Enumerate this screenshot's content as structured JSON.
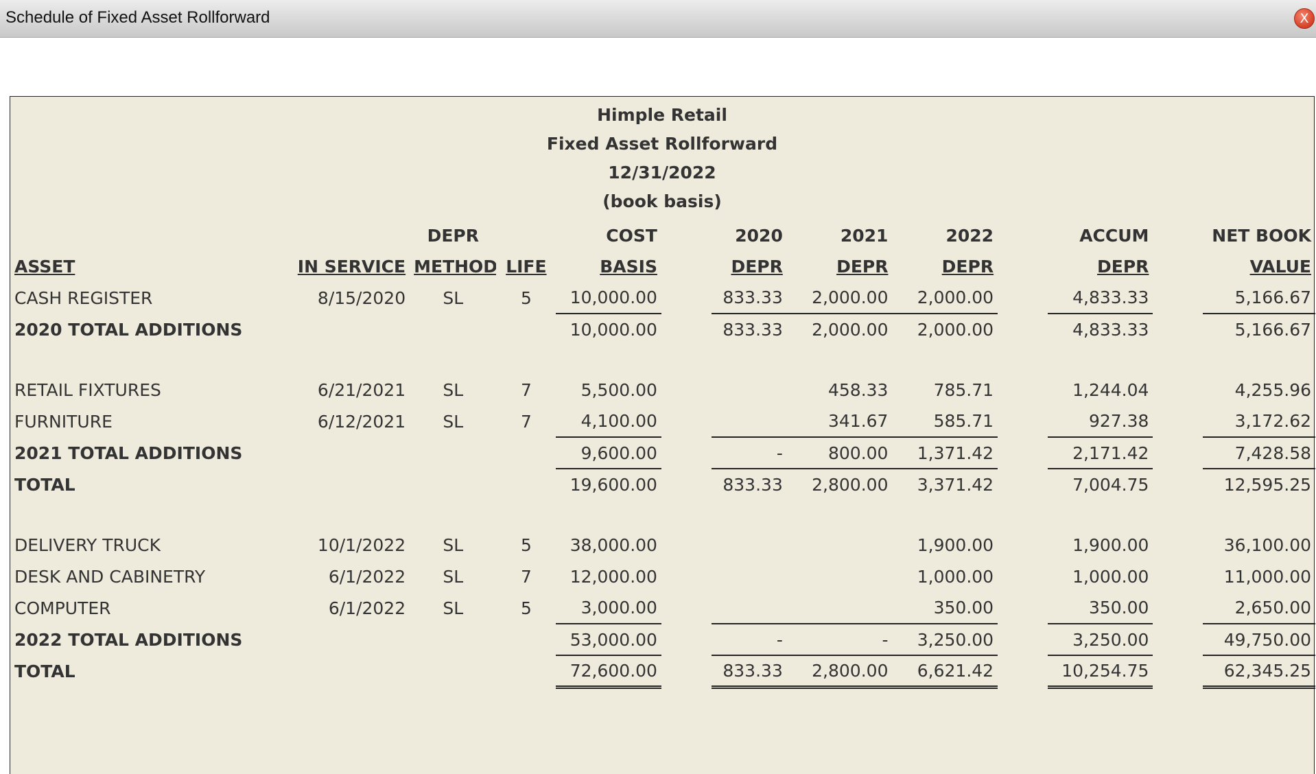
{
  "window": {
    "title": "Schedule of Fixed Asset Rollforward",
    "close_glyph": "X"
  },
  "report": {
    "company": "Himple Retail",
    "title": "Fixed Asset Rollforward",
    "date": "12/31/2022",
    "basis": "(book basis)"
  },
  "columns": {
    "top": {
      "method": "DEPR",
      "cost": "COST",
      "d2020": "2020",
      "d2021": "2021",
      "d2022": "2022",
      "accum": "ACCUM",
      "nbv": "NET BOOK"
    },
    "bottom": {
      "asset": "ASSET",
      "in_service": "IN SERVICE",
      "method": "METHOD",
      "life": "LIFE",
      "cost": "BASIS",
      "d2020": "DEPR",
      "d2021": "DEPR",
      "d2022": "DEPR",
      "accum": "DEPR",
      "nbv": "VALUE"
    }
  },
  "rows": [
    {
      "type": "asset",
      "asset": "CASH REGISTER",
      "in_service": "8/15/2020",
      "method": "SL",
      "life": "5",
      "cost": "10,000.00",
      "d2020": "833.33",
      "d2021": "2,000.00",
      "d2022": "2,000.00",
      "accum": "4,833.33",
      "nbv": "5,166.67"
    },
    {
      "type": "subtotal",
      "asset": "2020 TOTAL ADDITIONS",
      "cost": "10,000.00",
      "d2020": "833.33",
      "d2021": "2,000.00",
      "d2022": "2,000.00",
      "accum": "4,833.33",
      "nbv": "5,166.67"
    },
    {
      "type": "spacer"
    },
    {
      "type": "asset",
      "asset": "RETAIL FIXTURES",
      "in_service": "6/21/2021",
      "method": "SL",
      "life": "7",
      "cost": "5,500.00",
      "d2020": "",
      "d2021": "458.33",
      "d2022": "785.71",
      "accum": "1,244.04",
      "nbv": "4,255.96"
    },
    {
      "type": "asset",
      "asset": "FURNITURE",
      "in_service": "6/12/2021",
      "method": "SL",
      "life": "7",
      "cost": "4,100.00",
      "d2020": "",
      "d2021": "341.67",
      "d2022": "585.71",
      "accum": "927.38",
      "nbv": "3,172.62"
    },
    {
      "type": "subtotal",
      "asset": "2021 TOTAL ADDITIONS",
      "cost": "9,600.00",
      "d2020": "-",
      "d2021": "800.00",
      "d2022": "1,371.42",
      "accum": "2,171.42",
      "nbv": "7,428.58"
    },
    {
      "type": "total",
      "asset": "TOTAL",
      "cost": "19,600.00",
      "d2020": "833.33",
      "d2021": "2,800.00",
      "d2022": "3,371.42",
      "accum": "7,004.75",
      "nbv": "12,595.25"
    },
    {
      "type": "spacer"
    },
    {
      "type": "asset",
      "asset": "DELIVERY TRUCK",
      "in_service": "10/1/2022",
      "method": "SL",
      "life": "5",
      "cost": "38,000.00",
      "d2020": "",
      "d2021": "",
      "d2022": "1,900.00",
      "accum": "1,900.00",
      "nbv": "36,100.00"
    },
    {
      "type": "asset",
      "asset": "DESK AND CABINETRY",
      "in_service": "6/1/2022",
      "method": "SL",
      "life": "7",
      "cost": "12,000.00",
      "d2020": "",
      "d2021": "",
      "d2022": "1,000.00",
      "accum": "1,000.00",
      "nbv": "11,000.00"
    },
    {
      "type": "asset",
      "asset": "COMPUTER",
      "in_service": "6/1/2022",
      "method": "SL",
      "life": "5",
      "cost": "3,000.00",
      "d2020": "",
      "d2021": "",
      "d2022": "350.00",
      "accum": "350.00",
      "nbv": "2,650.00"
    },
    {
      "type": "subtotal",
      "asset": "2022 TOTAL ADDITIONS",
      "cost": "53,000.00",
      "d2020": "-",
      "d2021": "-",
      "d2022": "3,250.00",
      "accum": "3,250.00",
      "nbv": "49,750.00"
    },
    {
      "type": "grandtotal",
      "asset": "TOTAL",
      "cost": "72,600.00",
      "d2020": "833.33",
      "d2021": "2,800.00",
      "d2022": "6,621.42",
      "accum": "10,254.75",
      "nbv": "62,345.25"
    }
  ]
}
